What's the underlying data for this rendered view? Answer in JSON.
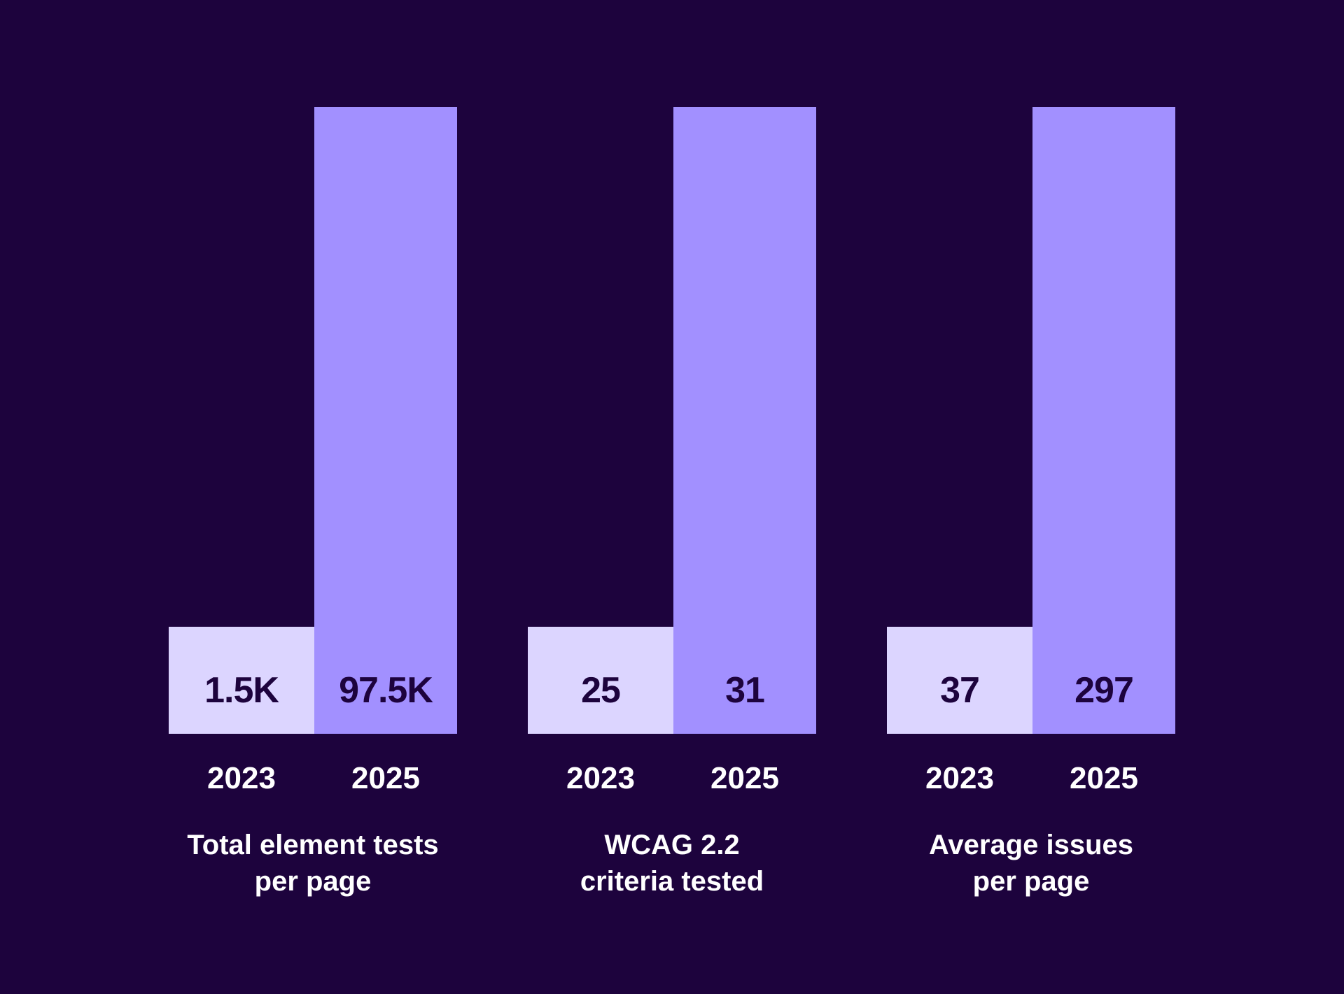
{
  "colors": {
    "background": "#1d033d",
    "bar_2023": "#dcd5ff",
    "bar_2025": "#a290ff"
  },
  "chart_data": {
    "type": "bar",
    "note": "bars are not drawn to scale; values shown as labels",
    "series_names": [
      "2023",
      "2025"
    ],
    "groups": [
      {
        "title_line1": "Total element tests",
        "title_line2": "per page",
        "year_a": "2023",
        "year_b": "2025",
        "value_a": "1.5K",
        "value_b": "97.5K",
        "num_a": 1500,
        "num_b": 97500
      },
      {
        "title_line1": "WCAG 2.2",
        "title_line2": "criteria tested",
        "year_a": "2023",
        "year_b": "2025",
        "value_a": "25",
        "value_b": "31",
        "num_a": 25,
        "num_b": 31
      },
      {
        "title_line1": "Average issues",
        "title_line2": "per page",
        "year_a": "2023",
        "year_b": "2025",
        "value_a": "37",
        "value_b": "297",
        "num_a": 37,
        "num_b": 297
      }
    ]
  }
}
